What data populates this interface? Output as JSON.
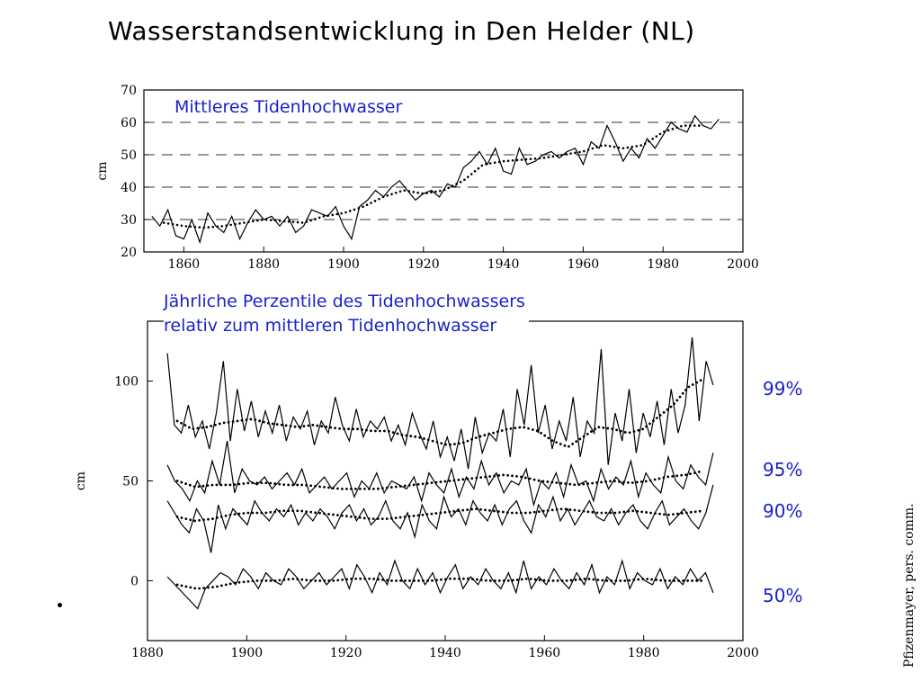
{
  "title": "Wasserstandsentwicklung in Den Helder (NL)",
  "credit": "Pfizenmayer, pers. comm.",
  "chart_data": [
    {
      "type": "line",
      "title": "Mittleres Tidenhochwasser",
      "ylabel": "cm",
      "xlim": [
        1850,
        2000
      ],
      "ylim": [
        20,
        70
      ],
      "xticks": [
        1860,
        1880,
        1900,
        1920,
        1940,
        1960,
        1980,
        2000
      ],
      "yticks": [
        20,
        30,
        40,
        50,
        60,
        70
      ],
      "grid": "dashed horizontal at 30, 40, 50, 60",
      "series": [
        {
          "style": "solid",
          "x": [
            1852,
            1854,
            1856,
            1858,
            1860,
            1862,
            1864,
            1866,
            1868,
            1870,
            1872,
            1874,
            1876,
            1878,
            1880,
            1882,
            1884,
            1886,
            1888,
            1890,
            1892,
            1894,
            1896,
            1898,
            1900,
            1902,
            1904,
            1906,
            1908,
            1910,
            1912,
            1914,
            1916,
            1918,
            1920,
            1922,
            1924,
            1926,
            1928,
            1930,
            1932,
            1934,
            1936,
            1938,
            1940,
            1942,
            1944,
            1946,
            1948,
            1950,
            1952,
            1954,
            1956,
            1958,
            1960,
            1962,
            1964,
            1966,
            1968,
            1970,
            1972,
            1974,
            1976,
            1978,
            1980,
            1982,
            1984,
            1986,
            1988,
            1990,
            1992,
            1994
          ],
          "values": [
            31,
            28,
            33,
            25,
            24,
            30,
            23,
            32,
            28,
            26,
            31,
            24,
            29,
            33,
            30,
            31,
            28,
            31,
            26,
            28,
            33,
            32,
            31,
            34,
            28,
            24,
            34,
            36,
            39,
            37,
            40,
            42,
            39,
            36,
            38,
            39,
            37,
            41,
            40,
            46,
            48,
            51,
            47,
            52,
            45,
            44,
            52,
            47,
            48,
            50,
            51,
            49,
            51,
            52,
            47,
            54,
            52,
            59,
            54,
            48,
            52,
            49,
            55,
            52,
            56,
            60,
            58,
            57,
            62,
            59,
            58,
            61
          ]
        },
        {
          "style": "dotted",
          "x": [
            1855,
            1860,
            1865,
            1870,
            1875,
            1880,
            1885,
            1890,
            1895,
            1900,
            1905,
            1910,
            1915,
            1920,
            1925,
            1930,
            1935,
            1940,
            1945,
            1950,
            1955,
            1960,
            1965,
            1970,
            1975,
            1980,
            1985,
            1990
          ],
          "values": [
            29,
            28,
            27.5,
            28,
            29,
            30,
            29.5,
            29,
            31,
            32,
            34,
            37,
            39,
            38,
            39,
            42,
            47,
            48,
            48.5,
            49,
            50,
            51,
            53,
            52,
            53,
            57,
            59,
            59
          ]
        }
      ]
    },
    {
      "type": "line",
      "title": "Jährliche Perzentile des Tidenhochwassers\nrelativ zum mittleren Tidenhochwasser",
      "ylabel": "cm",
      "xlim": [
        1880,
        2000
      ],
      "ylim": [
        -30,
        130
      ],
      "xticks": [
        1880,
        1900,
        1920,
        1940,
        1960,
        1980,
        2000
      ],
      "yticks": [
        0,
        50,
        100
      ],
      "series": [
        {
          "name": "99%",
          "base": 78,
          "amp": 14,
          "annual": [
            114,
            78,
            74,
            88,
            72,
            80,
            66,
            84,
            110,
            70,
            96,
            75,
            90,
            72,
            85,
            74,
            88,
            70,
            82,
            76,
            85,
            68,
            80,
            74,
            92,
            78,
            70,
            86,
            72,
            80,
            76,
            82,
            70,
            78,
            68,
            84,
            74,
            66,
            80,
            62,
            72,
            60,
            76,
            56,
            82,
            64,
            74,
            70,
            86,
            62,
            96,
            78,
            108,
            74,
            88,
            66,
            80,
            70,
            92,
            62,
            80,
            74,
            116,
            58,
            84,
            70,
            96,
            64,
            84,
            72,
            90,
            68,
            96,
            74,
            88,
            122,
            80,
            110,
            98
          ],
          "smooth": [
            80,
            76,
            77,
            79,
            80,
            81,
            79,
            78,
            77,
            78,
            77,
            76,
            76,
            75,
            75,
            73,
            72,
            70,
            68,
            69,
            72,
            74,
            76,
            77,
            75,
            70,
            67,
            72,
            77,
            76,
            74,
            76,
            82,
            88,
            97,
            101
          ]
        },
        {
          "name": "95%",
          "base": 48,
          "amp": 8,
          "annual": [
            58,
            50,
            46,
            40,
            50,
            44,
            60,
            48,
            70,
            44,
            56,
            50,
            48,
            52,
            46,
            50,
            54,
            48,
            56,
            44,
            48,
            52,
            46,
            50,
            54,
            42,
            50,
            46,
            54,
            44,
            50,
            48,
            46,
            52,
            40,
            54,
            48,
            44,
            56,
            42,
            52,
            46,
            60,
            48,
            54,
            44,
            50,
            48,
            56,
            38,
            50,
            46,
            54,
            42,
            58,
            48,
            50,
            40,
            56,
            46,
            52,
            48,
            60,
            42,
            54,
            48,
            44,
            62,
            50,
            46,
            58,
            52,
            48,
            64
          ],
          "smooth": [
            50,
            47,
            48,
            48,
            49,
            49,
            48,
            48,
            47,
            46,
            46,
            46,
            47,
            48,
            49,
            50,
            51,
            52,
            53,
            52,
            50,
            49,
            48,
            49,
            50,
            49,
            50,
            52,
            53,
            55
          ]
        },
        {
          "name": "90%",
          "base": 35,
          "amp": 7,
          "annual": [
            40,
            34,
            28,
            24,
            36,
            30,
            14,
            38,
            26,
            36,
            32,
            28,
            40,
            34,
            30,
            36,
            32,
            38,
            28,
            34,
            30,
            36,
            32,
            26,
            34,
            38,
            30,
            36,
            28,
            32,
            40,
            30,
            26,
            34,
            22,
            38,
            30,
            26,
            42,
            32,
            36,
            28,
            40,
            34,
            30,
            38,
            28,
            36,
            40,
            30,
            24,
            38,
            32,
            42,
            30,
            36,
            28,
            34,
            40,
            32,
            30,
            36,
            28,
            34,
            38,
            30,
            26,
            34,
            40,
            28,
            32,
            36,
            30,
            26,
            34,
            48
          ],
          "smooth": [
            32,
            30,
            31,
            33,
            34,
            34,
            35,
            35,
            34,
            33,
            32,
            31,
            31,
            32,
            33,
            34,
            35,
            36,
            35,
            34,
            34,
            35,
            36,
            35,
            34,
            34,
            35,
            34,
            33,
            34,
            35
          ]
        },
        {
          "name": "50%",
          "base": 0,
          "amp": 3,
          "annual": [
            2,
            -2,
            -6,
            -10,
            -14,
            -4,
            0,
            4,
            2,
            -2,
            6,
            2,
            -4,
            4,
            0,
            -2,
            6,
            2,
            -4,
            0,
            4,
            -2,
            2,
            6,
            -4,
            8,
            2,
            -6,
            4,
            -2,
            10,
            0,
            -4,
            6,
            -2,
            4,
            -6,
            2,
            8,
            -4,
            2,
            -2,
            6,
            0,
            -4,
            4,
            -6,
            10,
            -4,
            2,
            -2,
            6,
            0,
            -4,
            4,
            -2,
            8,
            -6,
            2,
            -2,
            10,
            -4,
            4,
            0,
            -2,
            6,
            -4,
            2,
            -2,
            6,
            0,
            4,
            -6
          ],
          "smooth": [
            -2,
            -4,
            -3,
            -1,
            0,
            0,
            1,
            0,
            0,
            1,
            1,
            0,
            0,
            0,
            1,
            1,
            0,
            0,
            1,
            0,
            0,
            1,
            0,
            0,
            1,
            0,
            0,
            0
          ]
        }
      ]
    }
  ]
}
